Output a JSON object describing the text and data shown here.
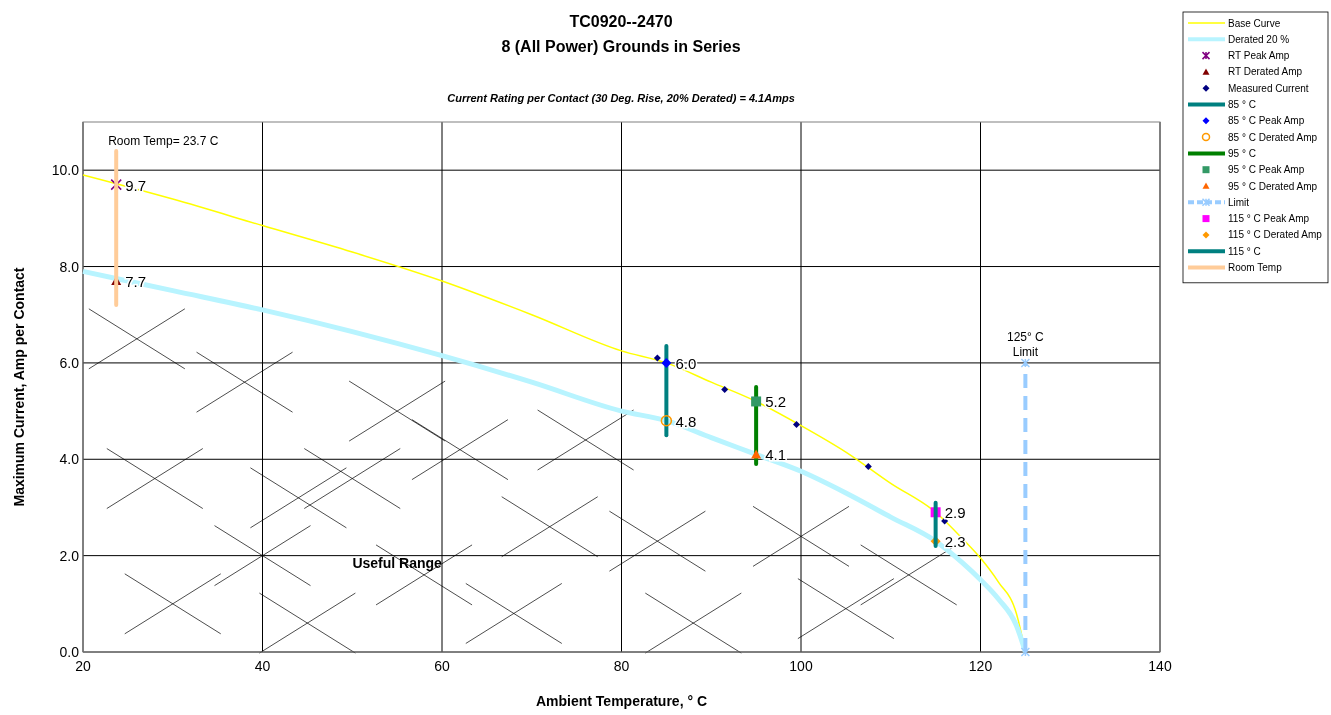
{
  "chart_data": {
    "type": "line",
    "title": "TC0920--2470",
    "subtitle": "8 (All Power) Grounds in Series",
    "xlabel": "Ambient Temperature,  ° C",
    "ylabel": "Maximum Current, Amp per Contact",
    "xlim": [
      20,
      140
    ],
    "xticks": [
      20,
      40,
      60,
      80,
      100,
      120,
      140
    ],
    "ylim": [
      0,
      11
    ],
    "yticks": [
      {
        "value": 0,
        "label": "0.0"
      },
      {
        "value": 2,
        "label": "2.0"
      },
      {
        "value": 4,
        "label": "4.0"
      },
      {
        "value": 6,
        "label": "6.0"
      },
      {
        "value": 8,
        "label": "8.0"
      },
      {
        "value": 10,
        "label": "10.0"
      }
    ],
    "grid": true,
    "legend": "top right",
    "annotations": [
      "Current Rating per Contact (30 Deg. Rise, 20% Derated)  = 4.1Amps",
      {
        "text": "Room Temp= 23.7 C",
        "x": 23.7,
        "y": 10.4
      },
      {
        "text": "125° C Limit",
        "x": 125,
        "y": 6.0
      },
      "Useful Range"
    ],
    "series": [
      {
        "name": "Base Curve",
        "color": "#ffff00",
        "x": [
          20,
          30,
          40,
          50,
          60,
          70,
          80,
          85,
          90,
          95,
          100,
          105,
          110,
          115,
          118,
          120,
          122,
          124,
          125
        ],
        "values": [
          9.9,
          9.4,
          8.85,
          8.3,
          7.7,
          7.0,
          6.25,
          6.0,
          5.6,
          5.2,
          4.7,
          4.15,
          3.5,
          2.9,
          2.35,
          1.95,
          1.45,
          0.8,
          0
        ]
      },
      {
        "name": "Derated 20 %",
        "color": "#b8f4ff",
        "x": [
          20,
          30,
          40,
          50,
          60,
          70,
          80,
          85,
          90,
          95,
          100,
          105,
          110,
          115,
          118,
          120,
          122,
          124,
          125
        ],
        "values": [
          7.9,
          7.5,
          7.1,
          6.65,
          6.15,
          5.6,
          5.0,
          4.8,
          4.45,
          4.1,
          3.75,
          3.3,
          2.8,
          2.3,
          1.85,
          1.5,
          1.1,
          0.55,
          0
        ]
      },
      {
        "name": "RT Peak Amp",
        "type": "scatter",
        "marker": "cross",
        "color": "#800080",
        "x": [
          23.7
        ],
        "values": [
          9.7
        ],
        "value_labels": [
          "9.7"
        ]
      },
      {
        "name": "RT Derated Amp",
        "type": "scatter",
        "marker": "triangle",
        "color": "#800000",
        "x": [
          23.7
        ],
        "values": [
          7.7
        ],
        "value_labels": [
          "7.7"
        ]
      },
      {
        "name": "Measured Current",
        "type": "scatter",
        "marker": "diamond",
        "color": "#000080",
        "x": [
          84,
          91.5,
          99.5,
          107.5,
          116
        ],
        "values": [
          6.1,
          5.45,
          4.72,
          3.85,
          2.72
        ]
      },
      {
        "name": "85 ° C",
        "type": "line",
        "color": "#008080",
        "x": [
          85,
          85
        ],
        "values": [
          4.5,
          6.35
        ]
      },
      {
        "name": "85  ° C Peak Amp",
        "type": "scatter",
        "marker": "diamond",
        "color": "#0000ff",
        "x": [
          85
        ],
        "values": [
          6.0
        ],
        "value_labels": [
          "6.0"
        ]
      },
      {
        "name": "85  ° C Derated Amp",
        "type": "scatter",
        "marker": "circle",
        "color": "#ff9900",
        "x": [
          85
        ],
        "values": [
          4.8
        ],
        "value_labels": [
          "4.8"
        ]
      },
      {
        "name": "95  ° C",
        "type": "line",
        "color": "#008000",
        "x": [
          95,
          95
        ],
        "values": [
          3.9,
          5.5
        ]
      },
      {
        "name": "95  ° C Peak Amp",
        "type": "scatter",
        "marker": "square",
        "color": "#339966",
        "x": [
          95
        ],
        "values": [
          5.2
        ],
        "value_labels": [
          "5.2"
        ]
      },
      {
        "name": "95  ° C Derated Amp",
        "type": "scatter",
        "marker": "triangle",
        "color": "#ff6600",
        "x": [
          95
        ],
        "values": [
          4.1
        ],
        "value_labels": [
          "4.1"
        ]
      },
      {
        "name": "Limit",
        "type": "line",
        "line_style": "dashed",
        "marker": "cross",
        "color": "#99ccff",
        "x": [
          125,
          125
        ],
        "values": [
          0,
          6.0
        ]
      },
      {
        "name": "115  ° C Peak Amp",
        "type": "scatter",
        "marker": "square",
        "color": "#ff00ff",
        "x": [
          115
        ],
        "values": [
          2.9
        ],
        "value_labels": [
          "2.9"
        ]
      },
      {
        "name": "115  ° C Derated Amp",
        "type": "scatter",
        "marker": "diamond",
        "color": "#ff9900",
        "x": [
          115
        ],
        "values": [
          2.3
        ],
        "value_labels": [
          "2.3"
        ]
      },
      {
        "name": "115  ° C",
        "type": "line",
        "color": "#008080",
        "x": [
          115,
          115
        ],
        "values": [
          2.2,
          3.1
        ]
      },
      {
        "name": "Room Temp",
        "type": "line",
        "color": "#ffcc99",
        "x": [
          23.7,
          23.7
        ],
        "values": [
          7.2,
          10.4
        ]
      }
    ]
  }
}
